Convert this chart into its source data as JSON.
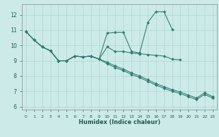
{
  "xlabel": "Humidex (Indice chaleur)",
  "xlim": [
    -0.5,
    23.5
  ],
  "ylim": [
    5.8,
    12.7
  ],
  "xticks": [
    0,
    1,
    2,
    3,
    4,
    5,
    6,
    7,
    8,
    9,
    10,
    11,
    12,
    13,
    14,
    15,
    16,
    17,
    18,
    19,
    20,
    21,
    22,
    23
  ],
  "yticks": [
    6,
    7,
    8,
    9,
    10,
    11,
    12
  ],
  "bg_color": "#cceae7",
  "line_color": "#2e7d72",
  "grid_color": "#afd6d2",
  "series": [
    {
      "x": [
        0,
        1,
        2,
        3,
        4,
        5,
        6,
        7,
        8,
        9,
        10,
        11,
        12,
        13,
        14,
        15,
        16,
        17,
        18
      ],
      "y": [
        10.9,
        10.35,
        9.9,
        9.65,
        9.0,
        9.0,
        9.3,
        9.25,
        9.3,
        9.1,
        10.8,
        10.85,
        10.85,
        9.6,
        9.5,
        11.5,
        12.2,
        12.2,
        11.05
      ]
    },
    {
      "x": [
        0,
        1,
        2,
        3,
        4,
        5,
        6,
        7,
        8,
        9,
        10,
        11,
        12,
        13,
        14,
        15,
        16,
        17,
        18,
        19
      ],
      "y": [
        10.9,
        10.35,
        9.9,
        9.65,
        9.0,
        9.0,
        9.3,
        9.25,
        9.3,
        9.1,
        9.9,
        9.6,
        9.6,
        9.5,
        9.45,
        9.4,
        9.35,
        9.3,
        9.1,
        9.05
      ]
    },
    {
      "x": [
        0,
        1,
        2,
        3,
        4,
        5,
        6,
        7,
        8,
        9,
        10,
        11,
        12,
        13,
        14,
        15,
        16,
        17,
        18,
        19,
        20,
        21,
        22,
        23
      ],
      "y": [
        10.9,
        10.35,
        9.9,
        9.65,
        9.0,
        9.0,
        9.3,
        9.25,
        9.3,
        9.1,
        8.9,
        8.65,
        8.45,
        8.2,
        8.0,
        7.75,
        7.5,
        7.3,
        7.1,
        6.95,
        6.75,
        6.55,
        6.9,
        6.65
      ]
    },
    {
      "x": [
        0,
        1,
        2,
        3,
        4,
        5,
        6,
        7,
        8,
        9,
        10,
        11,
        12,
        13,
        14,
        15,
        16,
        17,
        18,
        19,
        20,
        21,
        22,
        23
      ],
      "y": [
        10.9,
        10.35,
        9.9,
        9.65,
        9.0,
        9.0,
        9.3,
        9.25,
        9.3,
        9.1,
        8.8,
        8.55,
        8.35,
        8.1,
        7.9,
        7.65,
        7.4,
        7.2,
        7.0,
        6.85,
        6.65,
        6.45,
        6.8,
        6.55
      ]
    }
  ]
}
